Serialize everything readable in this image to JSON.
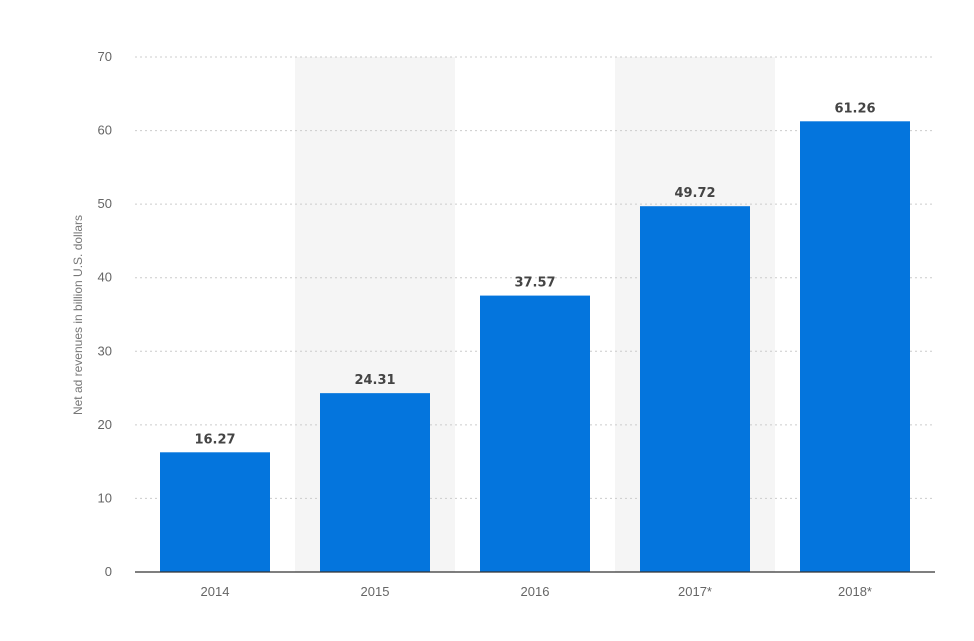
{
  "chart_data": {
    "type": "bar",
    "categories": [
      "2014",
      "2015",
      "2016",
      "2017*",
      "2018*"
    ],
    "series": [
      {
        "values": [
          16.27,
          24.31,
          37.57,
          49.72,
          61.26
        ],
        "value_labels": [
          "16.27",
          "24.31",
          "37.57",
          "49.72",
          "61.26"
        ]
      }
    ],
    "title": "",
    "xlabel": "",
    "ylabel": "Net ad revenues in billion U.S. dollars",
    "ylim": [
      0,
      70
    ],
    "yticks": [
      0,
      10,
      20,
      30,
      40,
      50,
      60,
      70
    ],
    "grid": true,
    "alternate_band_shading": true,
    "colors": {
      "bar": "#0475dd",
      "band": "#f5f5f5",
      "grid": "#cccccc",
      "baseline": "#333333"
    }
  }
}
